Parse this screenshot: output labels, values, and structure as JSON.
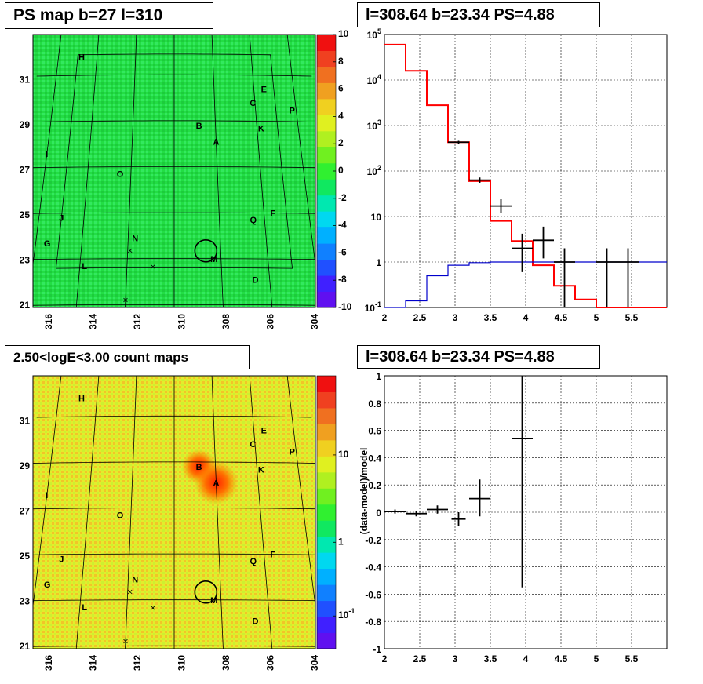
{
  "panels": {
    "top_left_title": "PS map b=27 l=310",
    "top_right_title": "l=308.64 b=23.34 PS=4.88",
    "bottom_left_title": "2.50<logE<3.00 count maps",
    "bottom_right_title": "l=308.64 b=23.34 PS=4.88"
  },
  "colors": {
    "model_line": "#ff0000",
    "background_line": "#0000cc",
    "data": "#000000",
    "map_green": "#22dd44",
    "map_yellow": "#e8f030"
  },
  "chart_data": [
    {
      "type": "heatmap",
      "title": "PS map b=27 l=310",
      "xlabel": "",
      "ylabel": "",
      "x_ticks": [
        "316",
        "314",
        "312",
        "310",
        "308",
        "306",
        "304"
      ],
      "y_ticks": [
        "21",
        "23",
        "25",
        "27",
        "29",
        "31"
      ],
      "colorbar_ticks": [
        "-10",
        "-8",
        "-6",
        "-4",
        "-2",
        "0",
        "2",
        "4",
        "6",
        "8",
        "10"
      ],
      "zlim": [
        -10,
        10
      ],
      "sources": [
        {
          "label": "H",
          "l": 314.8,
          "b": 31.8
        },
        {
          "label": "E",
          "l": 305.5,
          "b": 30.4
        },
        {
          "label": "C",
          "l": 306.1,
          "b": 29.8
        },
        {
          "label": "P",
          "l": 304.2,
          "b": 29.5
        },
        {
          "label": "B",
          "l": 308.8,
          "b": 28.8
        },
        {
          "label": "K",
          "l": 305.8,
          "b": 28.7
        },
        {
          "label": "A",
          "l": 308.0,
          "b": 28.1
        },
        {
          "label": "I",
          "l": 316.0,
          "b": 27.6
        },
        {
          "label": "O",
          "l": 312.5,
          "b": 26.7
        },
        {
          "label": "J",
          "l": 315.0,
          "b": 24.8
        },
        {
          "label": "F",
          "l": 305.6,
          "b": 25.0
        },
        {
          "label": "Q",
          "l": 306.5,
          "b": 24.7
        },
        {
          "label": "G",
          "l": 315.5,
          "b": 23.7
        },
        {
          "label": "N",
          "l": 311.7,
          "b": 23.9
        },
        {
          "label": "L",
          "l": 313.8,
          "b": 22.7
        },
        {
          "label": "M",
          "l": 308.3,
          "b": 23.0
        },
        {
          "label": "D",
          "l": 306.6,
          "b": 22.1
        }
      ],
      "circle": {
        "l": 308.64,
        "b": 23.34
      }
    },
    {
      "type": "line",
      "title": "l=308.64 b=23.34 PS=4.88",
      "xlabel": "",
      "ylabel": "",
      "yscale": "log",
      "xlim": [
        2,
        6
      ],
      "ylim": [
        0.1,
        100000
      ],
      "x_ticks": [
        "2",
        "2.5",
        "3",
        "3.5",
        "4",
        "4.5",
        "5",
        "5.5"
      ],
      "y_ticks": [
        "10^-1",
        "1",
        "10",
        "10^2",
        "10^3",
        "10^4",
        "10^5"
      ],
      "series": [
        {
          "style": "step",
          "edges": [
            2.0,
            2.3,
            2.6,
            2.9,
            3.2,
            3.5,
            3.8,
            4.1,
            4.4,
            4.7,
            5.0,
            5.3,
            5.6,
            6.0
          ],
          "values": [
            60000,
            16000,
            2800,
            430,
            60,
            8,
            2.9,
            0.85,
            0.3,
            0.15,
            0.1,
            0.1,
            0.1
          ]
        },
        {
          "style": "step",
          "edges": [
            2.0,
            2.3,
            2.6,
            2.9,
            3.2,
            3.5,
            3.8,
            4.1,
            4.4,
            4.7,
            5.0,
            5.3,
            5.6,
            6.0
          ],
          "values": [
            0.1,
            0.14,
            0.5,
            0.85,
            0.97,
            1.0,
            1.0,
            1.0,
            1.0,
            1.0,
            1.0,
            1.0,
            1.0
          ]
        },
        {
          "style": "points",
          "points": [
            {
              "x": 3.05,
              "y": 430,
              "xerr": 0.15,
              "ylo": 400,
              "yhi": 460
            },
            {
              "x": 3.35,
              "y": 63,
              "xerr": 0.15,
              "ylo": 55,
              "yhi": 72
            },
            {
              "x": 3.65,
              "y": 17,
              "xerr": 0.15,
              "ylo": 12,
              "yhi": 24
            },
            {
              "x": 3.95,
              "y": 2.0,
              "xerr": 0.15,
              "ylo": 0.6,
              "yhi": 4.2
            },
            {
              "x": 4.25,
              "y": 3.0,
              "xerr": 0.15,
              "ylo": 1.2,
              "yhi": 6.0
            },
            {
              "x": 4.55,
              "y": 1.0,
              "xerr": 0.15,
              "ylo": 0.1,
              "yhi": 2.0
            },
            {
              "x": 5.15,
              "y": 1.0,
              "xerr": 0.15,
              "ylo": 0.1,
              "yhi": 2.0
            },
            {
              "x": 5.45,
              "y": 1.0,
              "xerr": 0.15,
              "ylo": 0.1,
              "yhi": 2.0
            }
          ]
        }
      ]
    },
    {
      "type": "heatmap",
      "title": "2.50<logE<3.00 count maps",
      "xlabel": "",
      "ylabel": "",
      "x_ticks": [
        "316",
        "314",
        "312",
        "310",
        "308",
        "306",
        "304"
      ],
      "y_ticks": [
        "21",
        "23",
        "25",
        "27",
        "29",
        "31"
      ],
      "colorbar_ticks": [
        "10^-1",
        "1",
        "10"
      ],
      "zscale": "log",
      "circle": {
        "l": 308.64,
        "b": 23.34
      }
    },
    {
      "type": "scatter",
      "title": "l=308.64 b=23.34 PS=4.88",
      "xlabel": "",
      "ylabel": "(data-model)/model",
      "xlim": [
        2,
        6
      ],
      "ylim": [
        -1,
        1
      ],
      "x_ticks": [
        "2",
        "2.5",
        "3",
        "3.5",
        "4",
        "4.5",
        "5",
        "5.5"
      ],
      "y_ticks": [
        "-1",
        "-0.8",
        "-0.6",
        "-0.4",
        "-0.2",
        "0",
        "0.2",
        "0.4",
        "0.6",
        "0.8",
        "1"
      ],
      "points": [
        {
          "x": 2.15,
          "y": 0.005,
          "xerr": 0.15,
          "ylo": -0.01,
          "yhi": 0.02
        },
        {
          "x": 2.45,
          "y": -0.01,
          "xerr": 0.15,
          "ylo": -0.03,
          "yhi": 0.01
        },
        {
          "x": 2.75,
          "y": 0.02,
          "xerr": 0.15,
          "ylo": -0.01,
          "yhi": 0.05
        },
        {
          "x": 3.05,
          "y": -0.05,
          "xerr": 0.1,
          "ylo": -0.1,
          "yhi": 0.0
        },
        {
          "x": 3.35,
          "y": 0.1,
          "xerr": 0.15,
          "ylo": -0.03,
          "yhi": 0.24
        },
        {
          "x": 3.95,
          "y": 0.54,
          "xerr": 0.15,
          "ylo": -0.55,
          "yhi": 1.0
        }
      ]
    }
  ]
}
